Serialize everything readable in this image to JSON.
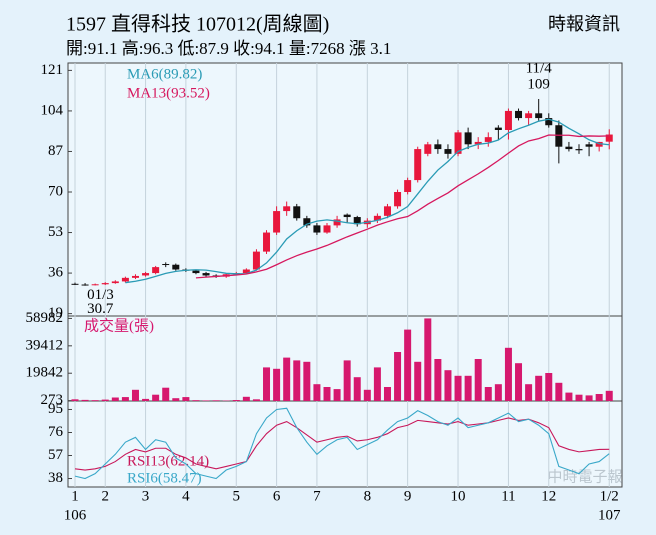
{
  "chart_data": [
    {
      "type": "candlestick",
      "title": "1597  直得科技 107012(周線圖)",
      "subtitle": "開:91.1 高:96.3 低:87.9 收:94.1 量:7268 漲 3.1",
      "source": "時報資訊",
      "watermark": "中時電子報",
      "up_color": "#e8173c",
      "down_color": "#111111",
      "open": [
        31.5,
        31.2,
        31.0,
        31.3,
        31.8,
        32.5,
        34.0,
        35.0,
        36.0,
        39.8,
        39.5,
        37.5,
        37.0,
        36.0,
        35.0,
        34.5,
        35.5,
        36.0,
        37.5,
        45.0,
        53.0,
        62.0,
        64.0,
        59.0,
        56.0,
        53.0,
        56.0,
        60.5,
        59.5,
        56.5,
        58.0,
        60.0,
        64.0,
        70.0,
        75.0,
        86.0,
        90.0,
        88.0,
        86.0,
        95.0,
        90.0,
        91.0,
        97.0,
        96.0,
        104.0,
        101.0,
        103.0,
        101.0,
        98.0,
        89.0,
        88.0,
        90.0,
        89.0,
        91.1
      ],
      "high": [
        32.0,
        31.8,
        31.6,
        32.2,
        33.0,
        34.5,
        35.5,
        36.5,
        39.0,
        40.5,
        40.0,
        38.0,
        37.5,
        36.5,
        35.5,
        36.0,
        36.5,
        38.0,
        46.0,
        54.0,
        64.0,
        66.0,
        65.0,
        60.0,
        57.0,
        57.0,
        60.0,
        61.0,
        60.0,
        59.0,
        61.0,
        65.0,
        71.0,
        76.0,
        89.0,
        91.0,
        92.0,
        90.0,
        96.0,
        97.0,
        93.0,
        95.0,
        98.0,
        105.0,
        105.0,
        104.0,
        109,
        103.0,
        100.0,
        91.0,
        90.0,
        91.0,
        91.0,
        96.3
      ],
      "low": [
        31.0,
        30.7,
        30.8,
        31.0,
        31.5,
        32.0,
        33.5,
        34.5,
        35.5,
        38.5,
        37.0,
        36.5,
        35.5,
        34.5,
        34.0,
        34.0,
        35.0,
        35.5,
        37.0,
        44.0,
        52.0,
        60.0,
        58.0,
        55.0,
        52.0,
        52.5,
        55.0,
        57.0,
        55.5,
        55.0,
        57.0,
        59.0,
        63.0,
        69.0,
        74.0,
        85.0,
        86.0,
        84.0,
        85.0,
        88.0,
        88.0,
        89.0,
        92.0,
        92.0,
        100.0,
        98.0,
        100.0,
        97.0,
        82.0,
        87.0,
        86.0,
        85.0,
        87.0,
        87.9
      ],
      "close": [
        31.2,
        31.0,
        31.3,
        31.8,
        32.5,
        34.0,
        34.8,
        36.0,
        38.5,
        39.5,
        37.5,
        37.0,
        36.0,
        35.0,
        34.5,
        35.5,
        36.0,
        37.5,
        45.0,
        53.0,
        62.0,
        64.0,
        59.0,
        56.0,
        53.0,
        56.0,
        58.5,
        59.5,
        56.5,
        58.0,
        60.0,
        64.0,
        70.0,
        75.0,
        88.0,
        90.0,
        88.0,
        86.0,
        95.0,
        90.0,
        91.0,
        93.0,
        96.0,
        104.0,
        101.0,
        103.0,
        101.0,
        98.0,
        89.0,
        88.0,
        87.5,
        89.0,
        91.0,
        94.1
      ],
      "series": [
        {
          "name": "MA6(89.82)",
          "color": "#2a9bb5",
          "values": [
            null,
            null,
            null,
            null,
            null,
            31.97,
            32.57,
            33.4,
            34.6,
            35.9,
            36.7,
            37.2,
            37.4,
            37.25,
            36.6,
            35.9,
            35.7,
            35.75,
            37.25,
            40.25,
            44.8,
            50.3,
            53.75,
            56.5,
            57.8,
            58.3,
            57.8,
            57.1,
            56.7,
            57.3,
            58.1,
            59.4,
            61.3,
            63.9,
            69.2,
            74.5,
            79.2,
            82.8,
            87,
            88.7,
            90,
            90.5,
            91.8,
            94.8,
            96.5,
            98,
            99.7,
            100.5,
            99.3,
            96.7,
            94.4,
            91.9,
            90.3,
            89.82
          ]
        },
        {
          "name": "MA13(93.52)",
          "color": "#d6185e",
          "values": [
            null,
            null,
            null,
            null,
            null,
            null,
            null,
            null,
            null,
            null,
            null,
            null,
            34.0,
            34.3,
            34.6,
            34.9,
            35.2,
            35.6,
            36.5,
            37.6,
            39.5,
            41.5,
            43.3,
            44.8,
            46.1,
            47.6,
            49.4,
            51.2,
            52.8,
            54.4,
            56.1,
            57.5,
            58.8,
            59.7,
            62.1,
            64.9,
            67.3,
            69.6,
            72.6,
            75.1,
            77.6,
            80.3,
            83.2,
            86.3,
            89.3,
            91.4,
            92.4,
            93.9,
            93.8,
            93.8,
            93.3,
            93.5,
            93.4,
            93.52
          ]
        }
      ],
      "low_annotation": {
        "label": "01/3",
        "value": 30.7
      },
      "high_annotation": {
        "label": "11/4",
        "value": 109
      },
      "ylim": [
        18,
        122
      ],
      "yticks": [
        121,
        104,
        87,
        70,
        53,
        36,
        19
      ]
    },
    {
      "type": "bar",
      "title": "成交量(張)",
      "color": "#d6186e",
      "values": [
        1200,
        800,
        600,
        1000,
        2500,
        2800,
        8000,
        1500,
        4500,
        9500,
        2000,
        2800,
        600,
        400,
        500,
        300,
        700,
        3000,
        1200,
        24000,
        23000,
        31000,
        29000,
        28000,
        12000,
        10000,
        8500,
        29000,
        17000,
        8000,
        24000,
        10000,
        35000,
        51000,
        28000,
        58982,
        30000,
        22000,
        18000,
        18000,
        30000,
        10000,
        12000,
        38000,
        27000,
        12000,
        18000,
        20000,
        13000,
        6000,
        4500,
        4000,
        5000,
        7268
      ],
      "ylim": [
        0,
        60000
      ],
      "yticks": [
        58982,
        39412,
        19842,
        273
      ]
    },
    {
      "type": "line",
      "categories": [
        "1",
        null,
        null,
        "2",
        null,
        null,
        null,
        "3",
        null,
        null,
        null,
        "4",
        null,
        null,
        null,
        null,
        "5",
        null,
        null,
        null,
        "6",
        null,
        null,
        null,
        "7",
        null,
        null,
        null,
        null,
        "8",
        null,
        null,
        null,
        "9",
        null,
        null,
        null,
        null,
        "10",
        null,
        null,
        null,
        null,
        "11",
        null,
        null,
        null,
        "12",
        null,
        null,
        null,
        null,
        null,
        "1/2"
      ],
      "year_start": "106",
      "year_end": "107",
      "series": [
        {
          "name": "RSI13(62.14)",
          "color": "#c8185a",
          "values": [
            46,
            45,
            46,
            48,
            52,
            58,
            62,
            60,
            63,
            63,
            58,
            55,
            50,
            48,
            46,
            48,
            50,
            52,
            65,
            75,
            82,
            85,
            80,
            74,
            68,
            70,
            72,
            73,
            69,
            70,
            72,
            75,
            80,
            82,
            86,
            85,
            84,
            83,
            85,
            82,
            83,
            84,
            86,
            88,
            86,
            87,
            84,
            80,
            65,
            62,
            60,
            61,
            62,
            62.14
          ]
        },
        {
          "name": "RSI6(58.47)",
          "color": "#3aa8c9",
          "values": [
            40,
            38,
            42,
            50,
            58,
            68,
            72,
            62,
            70,
            68,
            55,
            50,
            42,
            40,
            38,
            45,
            48,
            52,
            75,
            88,
            95,
            96,
            80,
            68,
            58,
            65,
            70,
            72,
            62,
            66,
            70,
            78,
            85,
            88,
            94,
            90,
            85,
            82,
            88,
            80,
            82,
            84,
            88,
            92,
            85,
            87,
            82,
            75,
            48,
            45,
            42,
            50,
            52,
            58.47
          ]
        }
      ],
      "ylim": [
        31,
        102
      ],
      "yticks": [
        95,
        76,
        57,
        38
      ]
    }
  ]
}
